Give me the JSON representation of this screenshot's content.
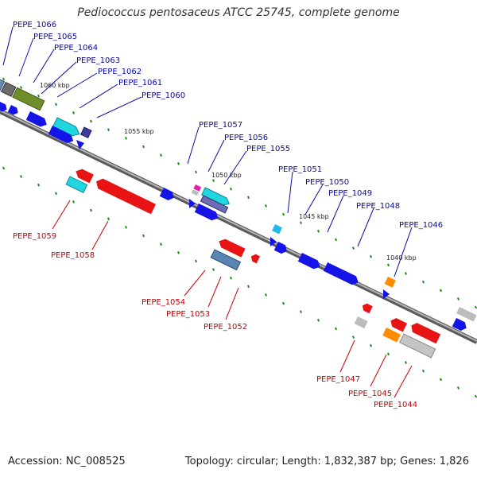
{
  "title": "Pediococcus pentosaceus ATCC 25745, complete genome",
  "footer": {
    "accession": "Accession: NC_008525",
    "summary": "Topology: circular; Length: 1,832,387 bp; Genes: 1,826"
  },
  "colors": {
    "forward_label": "#0a0aa8",
    "reverse_label": "#cc0000",
    "backbone": "#8c8c8c",
    "tick": "#1a8a1a"
  },
  "scale_labels": [
    "1060 kbp",
    "1055 kbp",
    "1050 kbp",
    "1045 kbp",
    "1040 kbp"
  ],
  "forward_labels": [
    "PEPE_1066",
    "PEPE_1065",
    "PEPE_1064",
    "PEPE_1063",
    "PEPE_1062",
    "PEPE_1061",
    "PEPE_1060",
    "PEPE_1057",
    "PEPE_1056",
    "PEPE_1055",
    "PEPE_1051",
    "PEPE_1050",
    "PEPE_1049",
    "PEPE_1048",
    "PEPE_1046"
  ],
  "reverse_labels": [
    "PEPE_1059",
    "PEPE_1058",
    "PEPE_1054",
    "PEPE_1053",
    "PEPE_1052",
    "PEPE_1047",
    "PEPE_1045",
    "PEPE_1044"
  ]
}
